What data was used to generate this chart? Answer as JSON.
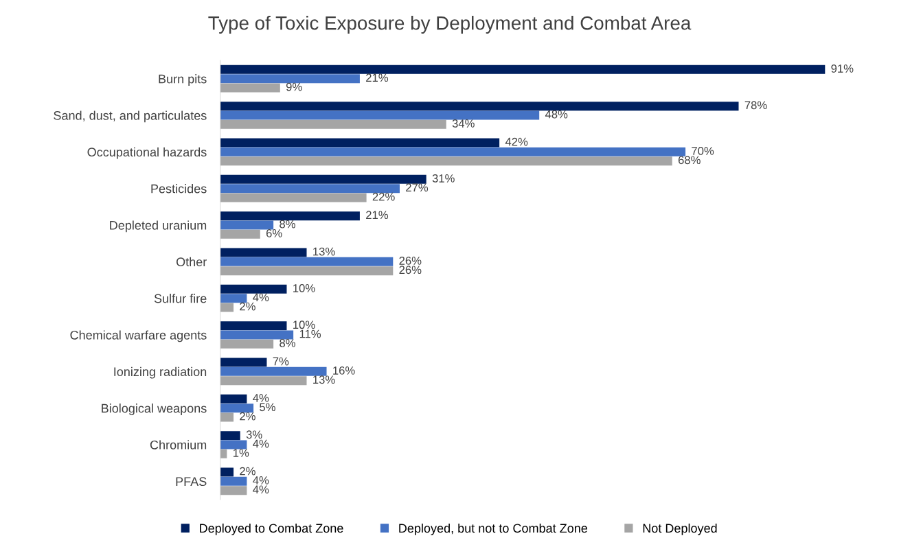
{
  "chart_data": {
    "type": "bar",
    "orientation": "horizontal",
    "title": "Type of Toxic Exposure by Deployment and Combat Area",
    "categories": [
      "Burn pits",
      "Sand, dust, and particulates",
      "Occupational hazards",
      "Pesticides",
      "Depleted uranium",
      "Other",
      "Sulfur fire",
      "Chemical warfare agents",
      "Ionizing radiation",
      "Biological weapons",
      "Chromium",
      "PFAS"
    ],
    "series": [
      {
        "name": "Deployed to Combat Zone",
        "color": "#002060",
        "values": [
          91,
          78,
          42,
          31,
          21,
          13,
          10,
          10,
          7,
          4,
          3,
          2
        ],
        "value_labels": [
          "91%",
          "78%",
          "42%",
          "31%",
          "21%",
          "13%",
          "10%",
          "10%",
          "7%",
          "4%",
          "3%",
          "2%"
        ]
      },
      {
        "name": "Deployed, but not to Combat Zone",
        "color": "#4472c4",
        "values": [
          21,
          48,
          70,
          27,
          8,
          26,
          4,
          11,
          16,
          5,
          4,
          4
        ],
        "value_labels": [
          "21%",
          "48%",
          "70%",
          "27%",
          "8%",
          "26%",
          "4%",
          "11%",
          "16%",
          "5%",
          "4%",
          "4%"
        ]
      },
      {
        "name": "Not Deployed",
        "color": "#a5a5a5",
        "values": [
          9,
          34,
          68,
          22,
          6,
          26,
          2,
          8,
          13,
          2,
          1,
          4
        ],
        "value_labels": [
          "9%",
          "34%",
          "68%",
          "22%",
          "6%",
          "26%",
          "2%",
          "8%",
          "13%",
          "2%",
          "1%",
          "4%"
        ]
      }
    ],
    "legend": "bottom",
    "tick_labels": "y"
  }
}
